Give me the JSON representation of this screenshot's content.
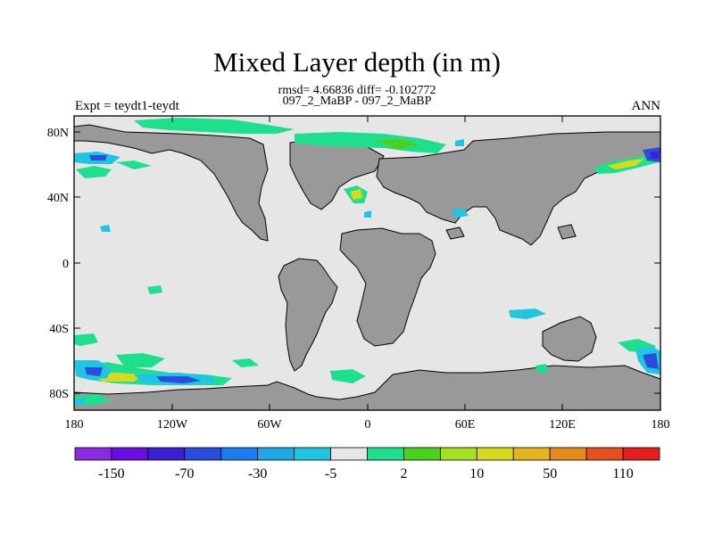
{
  "title": "Mixed Layer depth (in m)",
  "stats_line": "rmsd= 4.66836 diff= -0.102772",
  "cases_line": "097_2_MaBP - 097_2_MaBP",
  "left_label": "Expt = teydt1-teydt",
  "right_label": "ANN",
  "lat_ticks": [
    "80N",
    "40N",
    "0",
    "40S",
    "80S"
  ],
  "lon_ticks": [
    "180",
    "120W",
    "60W",
    "0",
    "60E",
    "120E",
    "180"
  ],
  "colorbar": {
    "colors": [
      "#8a2be2",
      "#6a0ee0",
      "#3c1fd6",
      "#2a4de0",
      "#1e7cf0",
      "#1fa8e6",
      "#20c6e0",
      "#e6e6e6",
      "#1ee08c",
      "#4ad21e",
      "#a6e01e",
      "#d8d81e",
      "#e6b41e",
      "#e68a1e",
      "#e6501e",
      "#e61e1e"
    ],
    "labels": [
      "-150",
      "-70",
      "-30",
      "-5",
      "2",
      "10",
      "50",
      "110"
    ]
  },
  "colors": {
    "ocean": "#e6e6e6",
    "land": "#999999"
  }
}
